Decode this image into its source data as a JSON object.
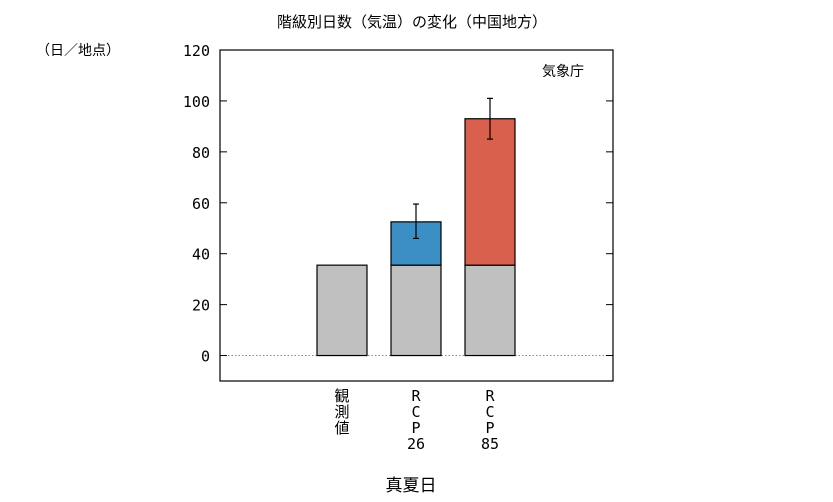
{
  "chart_data": {
    "type": "bar",
    "title": "階級別日数（気温）の変化（中国地方）",
    "unit_label": "（日／地点）",
    "source_label": "気象庁",
    "xlabel": "真夏日",
    "ylim": [
      -10,
      120
    ],
    "yticks": [
      0,
      20,
      40,
      60,
      80,
      100,
      120
    ],
    "grid": false,
    "zero_line": "dotted",
    "categories": [
      {
        "lines": [
          "観",
          "測",
          "値"
        ]
      },
      {
        "lines": [
          "R",
          "C",
          "P",
          "26"
        ]
      },
      {
        "lines": [
          "R",
          "C",
          "P",
          "85"
        ]
      }
    ],
    "series": [
      {
        "values": [
          35.5,
          35.5,
          35.5
        ],
        "color": "#c0c0c0"
      },
      {
        "values": [
          0,
          17,
          57.5
        ],
        "colors": [
          "#c0c0c0",
          "#3b8fc4",
          "#d9604c"
        ]
      }
    ],
    "totals": [
      35.5,
      52.5,
      93
    ],
    "error_bars": [
      null,
      {
        "low": 46,
        "high": 59.5
      },
      {
        "low": 85,
        "high": 101
      }
    ]
  }
}
